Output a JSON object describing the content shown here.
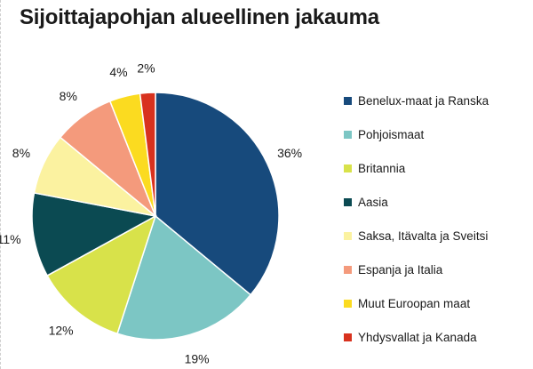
{
  "chart_data": {
    "type": "pie",
    "title": "Sijoittajapohjan alueellinen jakauma",
    "categories": [
      "Benelux-maat ja Ranska",
      "Pohjoismaat",
      "Britannia",
      "Aasia",
      "Saksa, Itävalta ja Sveitsi",
      "Espanja ja Italia",
      "Muut Euroopan maat",
      "Yhdysvallat ja Kanada"
    ],
    "values": [
      36,
      19,
      12,
      11,
      8,
      8,
      4,
      2
    ],
    "labels": [
      "36%",
      "19%",
      "12%",
      "11%",
      "8%",
      "8%",
      "4%",
      "2%"
    ],
    "colors": [
      "#174a7c",
      "#7cc6c4",
      "#d8e24a",
      "#0b4a52",
      "#fbf2a0",
      "#f49a7c",
      "#fbdb20",
      "#d8321e"
    ],
    "start": "12 o'clock",
    "direction": "clockwise",
    "legend_position": "right"
  }
}
